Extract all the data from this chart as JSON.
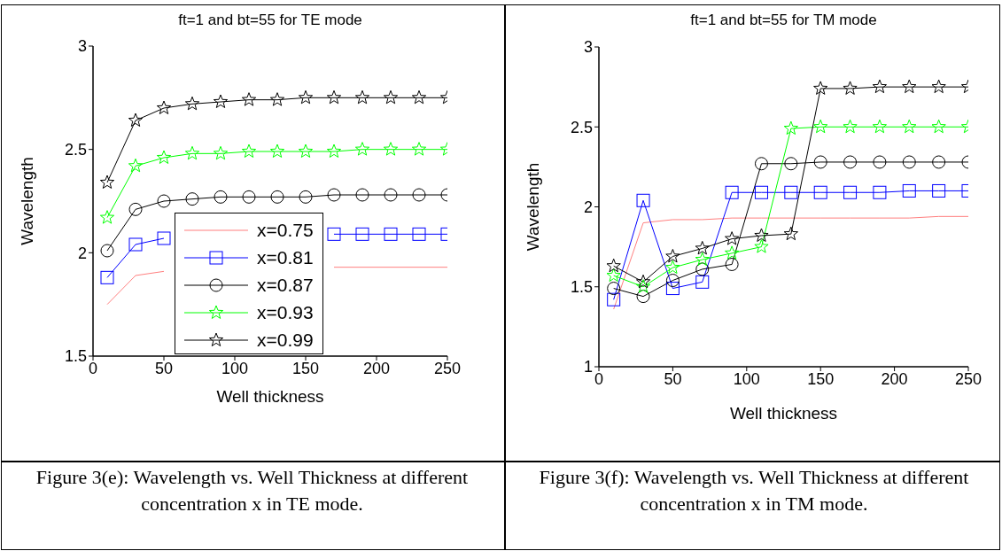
{
  "chart_data": [
    {
      "type": "line",
      "title": "ft=1 and bt=55 for TE mode",
      "xlabel": "Well thickness",
      "ylabel": "Wavelength",
      "x": [
        10,
        30,
        50,
        70,
        90,
        110,
        130,
        150,
        170,
        190,
        210,
        230,
        250
      ],
      "xlim": [
        0,
        250
      ],
      "xticks": [
        0,
        50,
        100,
        150,
        200,
        250
      ],
      "ylim": [
        1.5,
        3
      ],
      "yticks": [
        1.5,
        2,
        2.5,
        3
      ],
      "legend": "bottom",
      "annotations": [
        "Figure 3(e): Wavelength vs. Well Thickness at different concentration x in TE mode."
      ],
      "series": [
        {
          "name": "x=0.75",
          "color": "#ff7f7f",
          "marker": "none",
          "values": [
            1.75,
            1.89,
            1.91,
            null,
            null,
            null,
            null,
            null,
            1.93,
            1.93,
            1.93,
            1.93,
            1.93
          ]
        },
        {
          "name": "x=0.81",
          "color": "#0000ff",
          "marker": "square",
          "values": [
            1.88,
            2.04,
            2.07,
            null,
            null,
            null,
            null,
            null,
            2.09,
            2.09,
            2.09,
            2.09,
            2.09
          ]
        },
        {
          "name": "x=0.87",
          "color": "#000000",
          "marker": "circle",
          "values": [
            2.01,
            2.21,
            2.25,
            2.26,
            2.27,
            2.27,
            2.27,
            2.27,
            2.28,
            2.28,
            2.28,
            2.28,
            2.28
          ]
        },
        {
          "name": "x=0.93",
          "color": "#00ff00",
          "marker": "star",
          "values": [
            2.17,
            2.42,
            2.46,
            2.48,
            2.48,
            2.49,
            2.49,
            2.49,
            2.49,
            2.5,
            2.5,
            2.5,
            2.5
          ]
        },
        {
          "name": "x=0.99",
          "color": "#000000",
          "marker": "star",
          "values": [
            2.34,
            2.64,
            2.7,
            2.72,
            2.73,
            2.74,
            2.74,
            2.75,
            2.75,
            2.75,
            2.75,
            2.75,
            2.75
          ]
        }
      ]
    },
    {
      "type": "line",
      "title": "ft=1 and bt=55 for TM mode",
      "xlabel": "Well thickness",
      "ylabel": "Wavelength",
      "x": [
        10,
        30,
        50,
        70,
        90,
        110,
        130,
        150,
        170,
        190,
        210,
        230,
        250
      ],
      "xlim": [
        0,
        250
      ],
      "xticks": [
        0,
        50,
        100,
        150,
        200,
        250
      ],
      "ylim": [
        1,
        3
      ],
      "yticks": [
        1,
        1.5,
        2,
        2.5,
        3
      ],
      "annotations": [
        "Figure 3(f): Wavelength vs. Well Thickness at different concentration x in TM mode."
      ],
      "series": [
        {
          "color": "#ff7f7f",
          "marker": "none",
          "values": [
            1.36,
            1.9,
            1.92,
            1.92,
            1.93,
            1.93,
            1.93,
            1.93,
            1.93,
            1.93,
            1.93,
            1.94,
            1.94
          ]
        },
        {
          "color": "#0000ff",
          "marker": "square",
          "values": [
            1.42,
            2.04,
            1.49,
            1.53,
            2.09,
            2.09,
            2.09,
            2.09,
            2.09,
            2.09,
            2.1,
            2.1,
            2.1
          ]
        },
        {
          "color": "#000000",
          "marker": "circle",
          "values": [
            1.49,
            1.44,
            1.54,
            1.61,
            1.64,
            2.27,
            2.27,
            2.28,
            2.28,
            2.28,
            2.28,
            2.28,
            2.28
          ]
        },
        {
          "color": "#00ff00",
          "marker": "star",
          "values": [
            1.57,
            1.5,
            1.62,
            1.67,
            1.71,
            1.75,
            2.49,
            2.5,
            2.5,
            2.5,
            2.5,
            2.5,
            2.5
          ]
        },
        {
          "color": "#000000",
          "marker": "star",
          "values": [
            1.63,
            1.53,
            1.69,
            1.74,
            1.8,
            1.82,
            1.83,
            2.74,
            2.74,
            2.75,
            2.75,
            2.75,
            2.75
          ]
        }
      ]
    }
  ]
}
